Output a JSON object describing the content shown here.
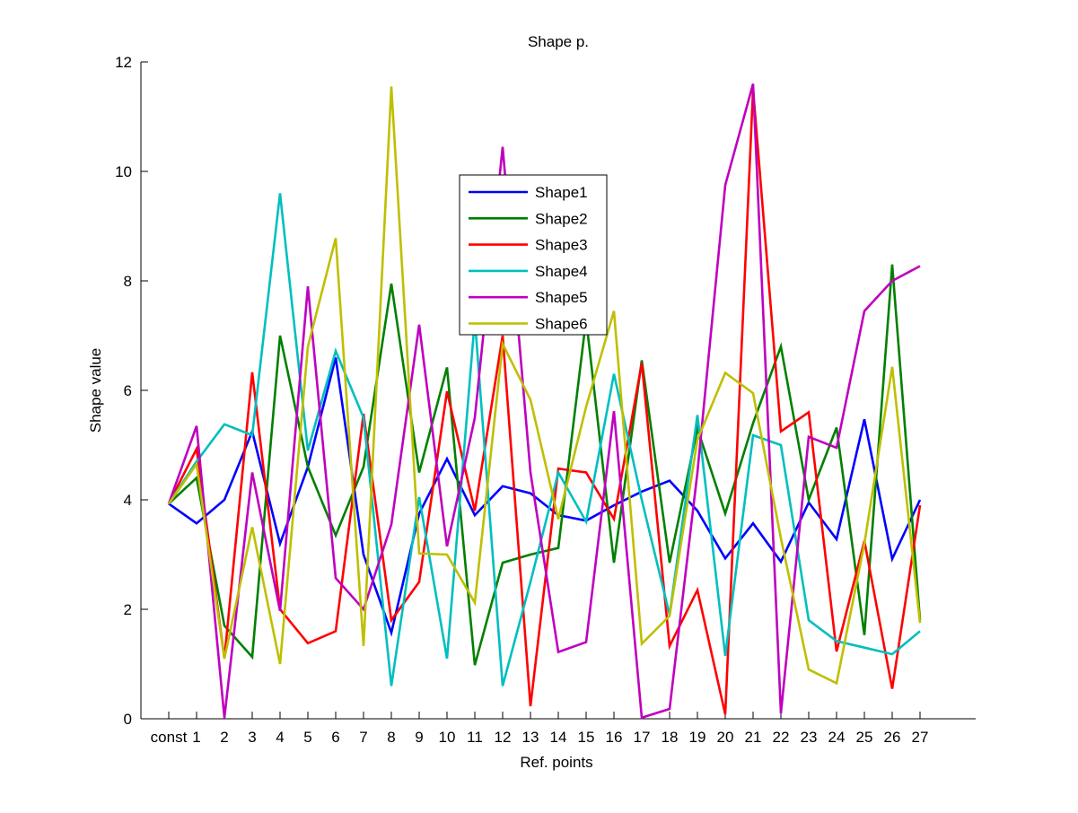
{
  "chart_data": {
    "type": "line",
    "title": "Shape p.",
    "xlabel": "Ref. points",
    "ylabel": "Shape value",
    "categories": [
      "const",
      "1",
      "2",
      "3",
      "4",
      "5",
      "6",
      "7",
      "8",
      "9",
      "10",
      "11",
      "12",
      "13",
      "14",
      "15",
      "16",
      "17",
      "18",
      "19",
      "20",
      "21",
      "22",
      "23",
      "24",
      "25",
      "26",
      "27"
    ],
    "ylim": [
      0,
      12
    ],
    "yticks": [
      "0",
      "2",
      "4",
      "6",
      "8",
      "10",
      "12"
    ],
    "grid": false,
    "legend_position": "top-center",
    "series": [
      {
        "name": "Shape1",
        "color": "#0000ff",
        "values": [
          3.93,
          3.57,
          4.0,
          5.25,
          3.2,
          4.6,
          6.6,
          3.0,
          1.57,
          3.75,
          4.75,
          3.72,
          4.25,
          4.12,
          3.72,
          3.62,
          3.9,
          4.15,
          4.35,
          3.8,
          2.93,
          3.57,
          2.87,
          3.95,
          3.28,
          5.47,
          2.92,
          4.0
        ]
      },
      {
        "name": "Shape2",
        "color": "#008000",
        "values": [
          3.93,
          4.4,
          1.7,
          1.13,
          7.0,
          4.6,
          3.35,
          4.6,
          7.95,
          4.5,
          6.42,
          0.98,
          2.85,
          3.0,
          3.12,
          7.3,
          2.85,
          6.55,
          2.85,
          5.3,
          3.75,
          5.4,
          6.8,
          4.0,
          5.32,
          1.53,
          8.3,
          1.8
        ]
      },
      {
        "name": "Shape3",
        "color": "#ff0000",
        "values": [
          3.93,
          4.93,
          1.1,
          6.33,
          2.0,
          1.38,
          1.6,
          5.57,
          1.8,
          2.5,
          5.98,
          3.8,
          7.0,
          0.23,
          4.57,
          4.5,
          3.65,
          6.5,
          1.33,
          2.35,
          0.08,
          11.5,
          5.25,
          5.6,
          1.23,
          3.25,
          0.55,
          3.9
        ]
      },
      {
        "name": "Shape4",
        "color": "#00bfbf",
        "values": [
          3.93,
          4.7,
          5.38,
          5.18,
          9.6,
          4.9,
          6.72,
          5.5,
          0.6,
          4.05,
          1.1,
          7.3,
          0.6,
          2.5,
          4.5,
          3.6,
          6.3,
          4.0,
          1.9,
          5.55,
          1.15,
          5.18,
          5.0,
          1.8,
          1.42,
          1.3,
          1.18,
          1.6
        ]
      },
      {
        "name": "Shape5",
        "color": "#bf00bf",
        "values": [
          3.93,
          5.35,
          0.02,
          4.5,
          1.97,
          7.9,
          2.57,
          2.0,
          3.55,
          7.2,
          3.15,
          5.5,
          10.45,
          4.5,
          1.22,
          1.4,
          5.62,
          0.02,
          0.18,
          4.5,
          9.75,
          11.6,
          0.1,
          5.15,
          4.95,
          7.45,
          8.0,
          8.27
        ]
      },
      {
        "name": "Shape6",
        "color": "#bfbf00",
        "values": [
          3.93,
          4.65,
          1.1,
          3.5,
          1.0,
          6.8,
          8.78,
          1.33,
          11.55,
          3.02,
          3.0,
          2.12,
          6.85,
          5.83,
          3.65,
          5.7,
          7.45,
          1.37,
          1.88,
          5.1,
          6.32,
          5.95,
          3.3,
          0.9,
          0.65,
          3.2,
          6.43,
          1.75
        ]
      }
    ]
  }
}
